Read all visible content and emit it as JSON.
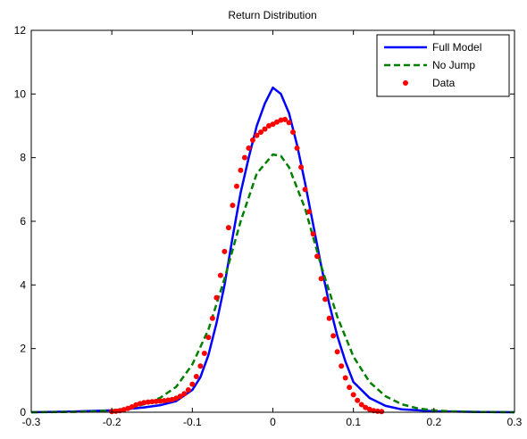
{
  "chart_data": {
    "type": "line",
    "title": "Return Distribution",
    "xlabel": "",
    "ylabel": "",
    "xlim": [
      -0.3,
      0.3
    ],
    "ylim": [
      0,
      12
    ],
    "xticks": [
      -0.3,
      -0.2,
      -0.1,
      0,
      0.1,
      0.2,
      0.3
    ],
    "xtick_labels": [
      "-0.3",
      "-0.2",
      "-0.1",
      "0",
      "0.1",
      "0.2",
      "0.3"
    ],
    "yticks": [
      0,
      2,
      4,
      6,
      8,
      10,
      12
    ],
    "ytick_labels": [
      "0",
      "2",
      "4",
      "6",
      "8",
      "10",
      "12"
    ],
    "grid": false,
    "legend_position": "top-right",
    "series": [
      {
        "name": "Full Model",
        "style": "solid",
        "color": "#0000ff",
        "x": [
          -0.3,
          -0.25,
          -0.2,
          -0.18,
          -0.16,
          -0.14,
          -0.12,
          -0.1,
          -0.09,
          -0.08,
          -0.07,
          -0.06,
          -0.05,
          -0.04,
          -0.03,
          -0.02,
          -0.01,
          0,
          0.01,
          0.02,
          0.03,
          0.04,
          0.05,
          0.06,
          0.07,
          0.08,
          0.09,
          0.1,
          0.12,
          0.14,
          0.16,
          0.2,
          0.25,
          0.3
        ],
        "y": [
          0.0,
          0.02,
          0.06,
          0.1,
          0.15,
          0.22,
          0.35,
          0.7,
          1.1,
          1.8,
          2.8,
          4.0,
          5.5,
          6.9,
          8.0,
          9.0,
          9.7,
          10.2,
          10.0,
          9.4,
          8.4,
          7.2,
          5.9,
          4.6,
          3.4,
          2.4,
          1.6,
          0.95,
          0.45,
          0.2,
          0.09,
          0.03,
          0.01,
          0.0
        ]
      },
      {
        "name": "No Jump",
        "style": "dashed",
        "color": "#007f00",
        "x": [
          -0.3,
          -0.25,
          -0.22,
          -0.2,
          -0.18,
          -0.16,
          -0.14,
          -0.12,
          -0.1,
          -0.08,
          -0.06,
          -0.04,
          -0.02,
          0,
          0.01,
          0.02,
          0.04,
          0.06,
          0.08,
          0.1,
          0.12,
          0.14,
          0.16,
          0.18,
          0.2,
          0.22,
          0.25,
          0.3
        ],
        "y": [
          0.0,
          0.01,
          0.03,
          0.06,
          0.12,
          0.25,
          0.45,
          0.8,
          1.5,
          2.6,
          4.2,
          6.0,
          7.5,
          8.1,
          8.05,
          7.7,
          6.4,
          4.6,
          3.0,
          1.75,
          0.95,
          0.5,
          0.25,
          0.12,
          0.06,
          0.03,
          0.01,
          0.0
        ]
      },
      {
        "name": "Data",
        "style": "markers",
        "color": "#ff0000",
        "x": [
          -0.2,
          -0.195,
          -0.19,
          -0.185,
          -0.18,
          -0.175,
          -0.17,
          -0.165,
          -0.16,
          -0.155,
          -0.15,
          -0.145,
          -0.14,
          -0.135,
          -0.13,
          -0.125,
          -0.12,
          -0.115,
          -0.11,
          -0.105,
          -0.1,
          -0.095,
          -0.09,
          -0.085,
          -0.08,
          -0.075,
          -0.07,
          -0.065,
          -0.06,
          -0.055,
          -0.05,
          -0.045,
          -0.04,
          -0.035,
          -0.03,
          -0.025,
          -0.02,
          -0.015,
          -0.01,
          -0.005,
          0,
          0.005,
          0.01,
          0.015,
          0.02,
          0.025,
          0.03,
          0.035,
          0.04,
          0.045,
          0.05,
          0.055,
          0.06,
          0.065,
          0.07,
          0.075,
          0.08,
          0.085,
          0.09,
          0.095,
          0.1,
          0.105,
          0.11,
          0.115,
          0.12,
          0.125,
          0.13,
          0.135
        ],
        "y": [
          0.02,
          0.03,
          0.05,
          0.08,
          0.12,
          0.17,
          0.23,
          0.27,
          0.3,
          0.32,
          0.33,
          0.34,
          0.35,
          0.36,
          0.38,
          0.4,
          0.44,
          0.5,
          0.58,
          0.7,
          0.88,
          1.12,
          1.45,
          1.85,
          2.35,
          2.95,
          3.6,
          4.3,
          5.05,
          5.8,
          6.5,
          7.1,
          7.6,
          8.0,
          8.3,
          8.55,
          8.7,
          8.8,
          8.9,
          9.0,
          9.05,
          9.12,
          9.18,
          9.2,
          9.1,
          8.8,
          8.3,
          7.7,
          7.0,
          6.3,
          5.6,
          4.9,
          4.2,
          3.55,
          2.95,
          2.4,
          1.9,
          1.45,
          1.08,
          0.78,
          0.55,
          0.37,
          0.24,
          0.15,
          0.09,
          0.05,
          0.03,
          0.02
        ]
      }
    ]
  }
}
